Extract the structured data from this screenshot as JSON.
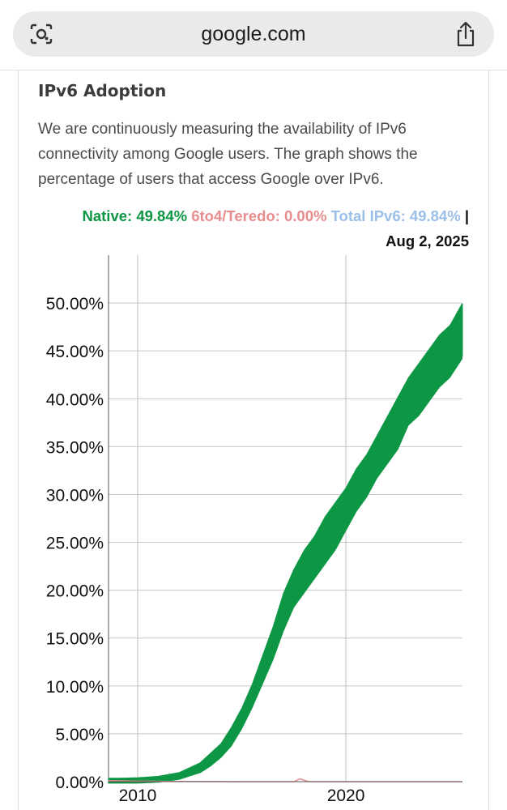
{
  "browser": {
    "url": "google.com",
    "lens_icon": "camera-search-icon",
    "share_icon": "share-icon"
  },
  "page": {
    "title": "IPv6 Adoption",
    "description": "We are continuously measuring the availability of IPv6 connectivity among Google users. The graph shows the percentage of users that access Google over IPv6."
  },
  "legend": {
    "native": "Native: 49.84%",
    "teredo": "6to4/Teredo: 0.00%",
    "total": "Total IPv6: 49.84%",
    "separator": "|",
    "date": "Aug 2, 2025",
    "colors": {
      "native": "#0d9644",
      "teredo": "#e88d8d",
      "total": "#9bbfe8"
    }
  },
  "chart_data": {
    "type": "area",
    "x_ticks": [
      "2010",
      "2020"
    ],
    "y_ticks": [
      "0.00%",
      "5.00%",
      "10.00%",
      "15.00%",
      "20.00%",
      "25.00%",
      "30.00%",
      "35.00%",
      "40.00%",
      "45.00%",
      "50.00%"
    ],
    "xlim": [
      2008.6,
      2025.6
    ],
    "ylim": [
      0,
      55
    ],
    "grid": true,
    "series": [
      {
        "name": "Native",
        "color": "#0d9644",
        "x": [
          2008.6,
          2009,
          2010,
          2011,
          2012,
          2013,
          2013.5,
          2014,
          2014.5,
          2015,
          2015.5,
          2016,
          2016.5,
          2017,
          2017.5,
          2018,
          2018.5,
          2019,
          2019.5,
          2020,
          2020.5,
          2021,
          2021.5,
          2022,
          2022.5,
          2023,
          2023.5,
          2024,
          2024.5,
          2025,
          2025.6
        ],
        "low": [
          0.1,
          0.1,
          0.1,
          0.2,
          0.5,
          1.2,
          1.9,
          2.8,
          4.0,
          5.8,
          8.0,
          10.5,
          13.0,
          16.0,
          18.5,
          20.0,
          21.5,
          23.0,
          24.5,
          26.5,
          28.5,
          30.0,
          32.0,
          33.5,
          35.0,
          37.5,
          38.5,
          40.0,
          41.5,
          42.5,
          44.5
        ],
        "high": [
          0.2,
          0.2,
          0.25,
          0.4,
          0.8,
          1.8,
          2.8,
          3.8,
          5.5,
          7.5,
          10.0,
          13.0,
          16.0,
          19.5,
          22.0,
          24.0,
          25.5,
          27.5,
          29.0,
          30.5,
          32.5,
          34.0,
          36.0,
          38.0,
          40.0,
          42.0,
          43.5,
          45.0,
          46.5,
          47.5,
          49.84
        ]
      },
      {
        "name": "6to4/Teredo",
        "color": "#e88d8d",
        "x": [
          2008.6,
          2010,
          2012,
          2015,
          2017.5,
          2017.8,
          2018.2,
          2020,
          2025.6
        ],
        "values": [
          0.1,
          0.05,
          0.02,
          0.0,
          0.0,
          0.3,
          0.0,
          0.0,
          0.0
        ]
      }
    ]
  }
}
